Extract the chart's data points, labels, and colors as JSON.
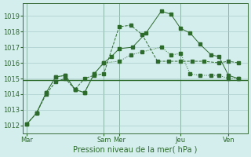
{
  "bg_color": "#d4eded",
  "grid_color": "#aacccc",
  "line_color": "#2d6b2d",
  "title": "Pression niveau de la mer( hPa )",
  "xtick_labels": [
    "Mar",
    "Sam",
    "Mer",
    "Jeu",
    "Ven"
  ],
  "xtick_positions": [
    0.0,
    4.0,
    4.8,
    8.0,
    10.5
  ],
  "ylim": [
    1011.5,
    1019.8
  ],
  "yticks": [
    1012,
    1013,
    1014,
    1015,
    1016,
    1017,
    1018,
    1019
  ],
  "xlim": [
    -0.2,
    11.5
  ],
  "hline_y": 1014.9,
  "line1_x": [
    0.0,
    0.5,
    1.0,
    1.5,
    2.0,
    2.5,
    3.0,
    3.5,
    4.0,
    4.8,
    5.4,
    6.0,
    6.8,
    7.4,
    8.0,
    8.6,
    9.2,
    10.0,
    10.5,
    11.0
  ],
  "line1_y": [
    1012.1,
    1012.8,
    1014.0,
    1014.8,
    1015.0,
    1014.3,
    1015.0,
    1015.2,
    1015.3,
    1018.3,
    1018.4,
    1017.8,
    1016.1,
    1016.1,
    1016.1,
    1016.1,
    1016.1,
    1016.0,
    1016.1,
    1016.0
  ],
  "line2_x": [
    0.0,
    0.5,
    1.0,
    1.5,
    2.0,
    2.5,
    3.0,
    3.5,
    4.0,
    4.4,
    4.8,
    5.5,
    6.2,
    7.0,
    7.5,
    8.0,
    8.5,
    9.0,
    9.6,
    10.0,
    10.5,
    11.0
  ],
  "line2_y": [
    1012.1,
    1012.8,
    1014.1,
    1015.1,
    1015.2,
    1014.3,
    1014.1,
    1015.3,
    1016.0,
    1016.4,
    1016.9,
    1017.0,
    1017.9,
    1019.3,
    1019.1,
    1018.2,
    1017.9,
    1017.2,
    1016.5,
    1016.4,
    1015.2,
    1015.0
  ],
  "line3_x": [
    0.5,
    1.0,
    1.5,
    2.0,
    2.5,
    3.0,
    3.5,
    4.0,
    4.8,
    5.4,
    6.0,
    7.0,
    7.5,
    8.0,
    8.5,
    9.0,
    9.6,
    10.0,
    10.5,
    11.0
  ],
  "line3_y": [
    1012.8,
    1014.1,
    1015.1,
    1015.2,
    1014.3,
    1014.1,
    1015.3,
    1016.0,
    1016.1,
    1016.5,
    1016.7,
    1017.0,
    1016.5,
    1016.6,
    1015.3,
    1015.2,
    1015.2,
    1015.2,
    1015.0,
    1015.0
  ]
}
